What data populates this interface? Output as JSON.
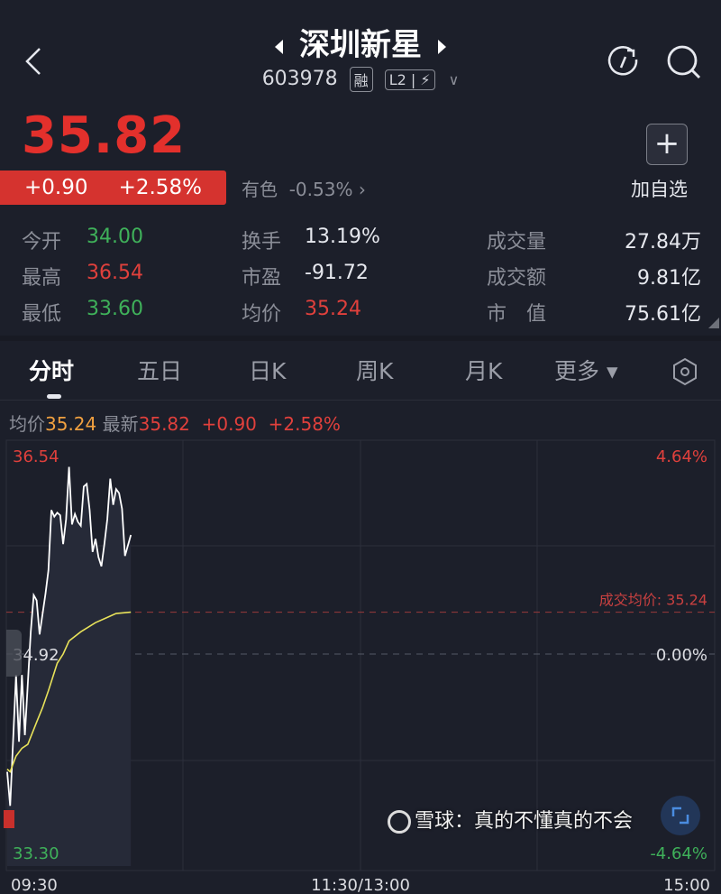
{
  "header": {
    "title": "深圳新星",
    "code": "603978",
    "badge_margin": "融",
    "badge_l2": "L2",
    "badge_flash": "⚡",
    "dropdown": "∨"
  },
  "quote": {
    "price": "35.82",
    "change": "+0.90",
    "change_pct": "+2.58%",
    "sector": "有色",
    "sector_pct": "-0.53%",
    "sector_arrow": "›",
    "add_icon": "+",
    "add_label": "加自选"
  },
  "stats": [
    {
      "label": "今开",
      "value": "34.00",
      "color": "#3fb15a"
    },
    {
      "label": "最高",
      "value": "36.54",
      "color": "#e0403c"
    },
    {
      "label": "最低",
      "value": "33.60",
      "color": "#3fb15a"
    },
    {
      "label": "换手",
      "value": "13.19%",
      "color": "#e6e8ee"
    },
    {
      "label": "市盈",
      "value": "-91.72",
      "color": "#e6e8ee"
    },
    {
      "label": "均价",
      "value": "35.24",
      "color": "#e0403c"
    },
    {
      "label": "成交量",
      "value": "27.84万",
      "color": "#e6e8ee"
    },
    {
      "label": "成交额",
      "value": "9.81亿",
      "color": "#e6e8ee"
    },
    {
      "label": "市　值",
      "value": "75.61亿",
      "color": "#e6e8ee"
    }
  ],
  "tabs": [
    {
      "label": "分时",
      "active": true
    },
    {
      "label": "五日"
    },
    {
      "label": "日K"
    },
    {
      "label": "周K"
    },
    {
      "label": "月K"
    },
    {
      "label": "更多 ▾"
    }
  ],
  "legend": {
    "avg_label": "均价",
    "avg": "35.24",
    "last_label": "最新",
    "last": "35.82",
    "chg": "+0.90",
    "pct": "+2.58%"
  },
  "chart_data": {
    "type": "line",
    "x_ticks": [
      "09:30",
      "11:30/13:00",
      "15:00"
    ],
    "ylim": [
      33.3,
      36.54
    ],
    "y_left_labels": {
      "high": "36.54",
      "base": "34.92",
      "low": "33.30"
    },
    "y_right_labels": {
      "high": "4.64%",
      "base": "0.00%",
      "low": "-4.64%"
    },
    "base_price": 34.92,
    "avg_line_label": "成交均价: 35.24",
    "series": [
      {
        "minutes": [
          0,
          1,
          3,
          4,
          5,
          6,
          8,
          9,
          10,
          11,
          13,
          14,
          15,
          16,
          17,
          18,
          19,
          20,
          21,
          22,
          23,
          24,
          25,
          26,
          27,
          28,
          29,
          30,
          31,
          32,
          33,
          34,
          35,
          36,
          37,
          38,
          39,
          40,
          42
        ],
        "values": [
          34.02,
          33.76,
          34.76,
          34.25,
          34.76,
          34.3,
          35.09,
          35.37,
          35.33,
          35.07,
          35.38,
          35.56,
          36.02,
          35.97,
          36.0,
          35.98,
          35.76,
          35.95,
          36.35,
          35.91,
          35.99,
          35.93,
          35.9,
          36.2,
          36.22,
          36.02,
          35.7,
          35.8,
          35.66,
          35.59,
          35.76,
          35.95,
          36.26,
          36.06,
          36.18,
          36.15,
          36.03,
          35.67,
          35.83
        ],
        "color": "#ffffff"
      },
      {
        "minutes": [
          0,
          1,
          3,
          5,
          7,
          10,
          12,
          14,
          17,
          19,
          21,
          25,
          30,
          34,
          37,
          42
        ],
        "values": [
          34.04,
          34.02,
          34.14,
          34.2,
          34.23,
          34.4,
          34.51,
          34.64,
          34.85,
          34.92,
          35.02,
          35.09,
          35.16,
          35.2,
          35.23,
          35.24
        ],
        "color": "#e8e25a"
      }
    ]
  },
  "watermark": "雪球：真的不懂真的不会"
}
